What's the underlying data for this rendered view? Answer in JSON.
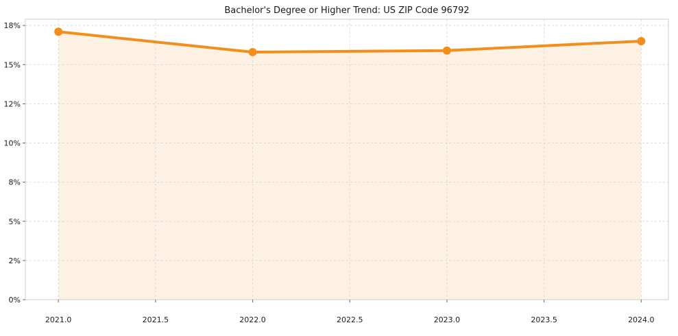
{
  "chart_data": {
    "type": "line",
    "title": "Bachelor's Degree or Higher Trend: US ZIP Code 96792",
    "xlabel": "",
    "ylabel": "",
    "x": [
      2021,
      2022,
      2023,
      2024
    ],
    "values": [
      17.1,
      15.8,
      15.9,
      16.5
    ],
    "xlim": [
      2020.83,
      2024.14
    ],
    "ylim": [
      0,
      17.9
    ],
    "x_ticks": [
      {
        "value": 2021.0,
        "label": "2021.0"
      },
      {
        "value": 2021.5,
        "label": "2021.5"
      },
      {
        "value": 2022.0,
        "label": "2022.0"
      },
      {
        "value": 2022.5,
        "label": "2022.5"
      },
      {
        "value": 2023.0,
        "label": "2023.0"
      },
      {
        "value": 2023.5,
        "label": "2023.5"
      },
      {
        "value": 2024.0,
        "label": "2024.0"
      }
    ],
    "y_ticks": [
      {
        "value": 0,
        "label": "0%"
      },
      {
        "value": 2.5,
        "label": "2%"
      },
      {
        "value": 5,
        "label": "5%"
      },
      {
        "value": 7.5,
        "label": "8%"
      },
      {
        "value": 10,
        "label": "10%"
      },
      {
        "value": 12.5,
        "label": "12%"
      },
      {
        "value": 15,
        "label": "15%"
      },
      {
        "value": 17.5,
        "label": "18%"
      }
    ],
    "grid": true,
    "legend": "none",
    "marker": "circle",
    "colors": {
      "line": "#F28E1B",
      "fill": "rgba(242,142,27,0.12)",
      "grid": "#DBDBDB",
      "border": "#CCCCCC",
      "tick": "#666666",
      "text": "#1A1A1A"
    }
  }
}
